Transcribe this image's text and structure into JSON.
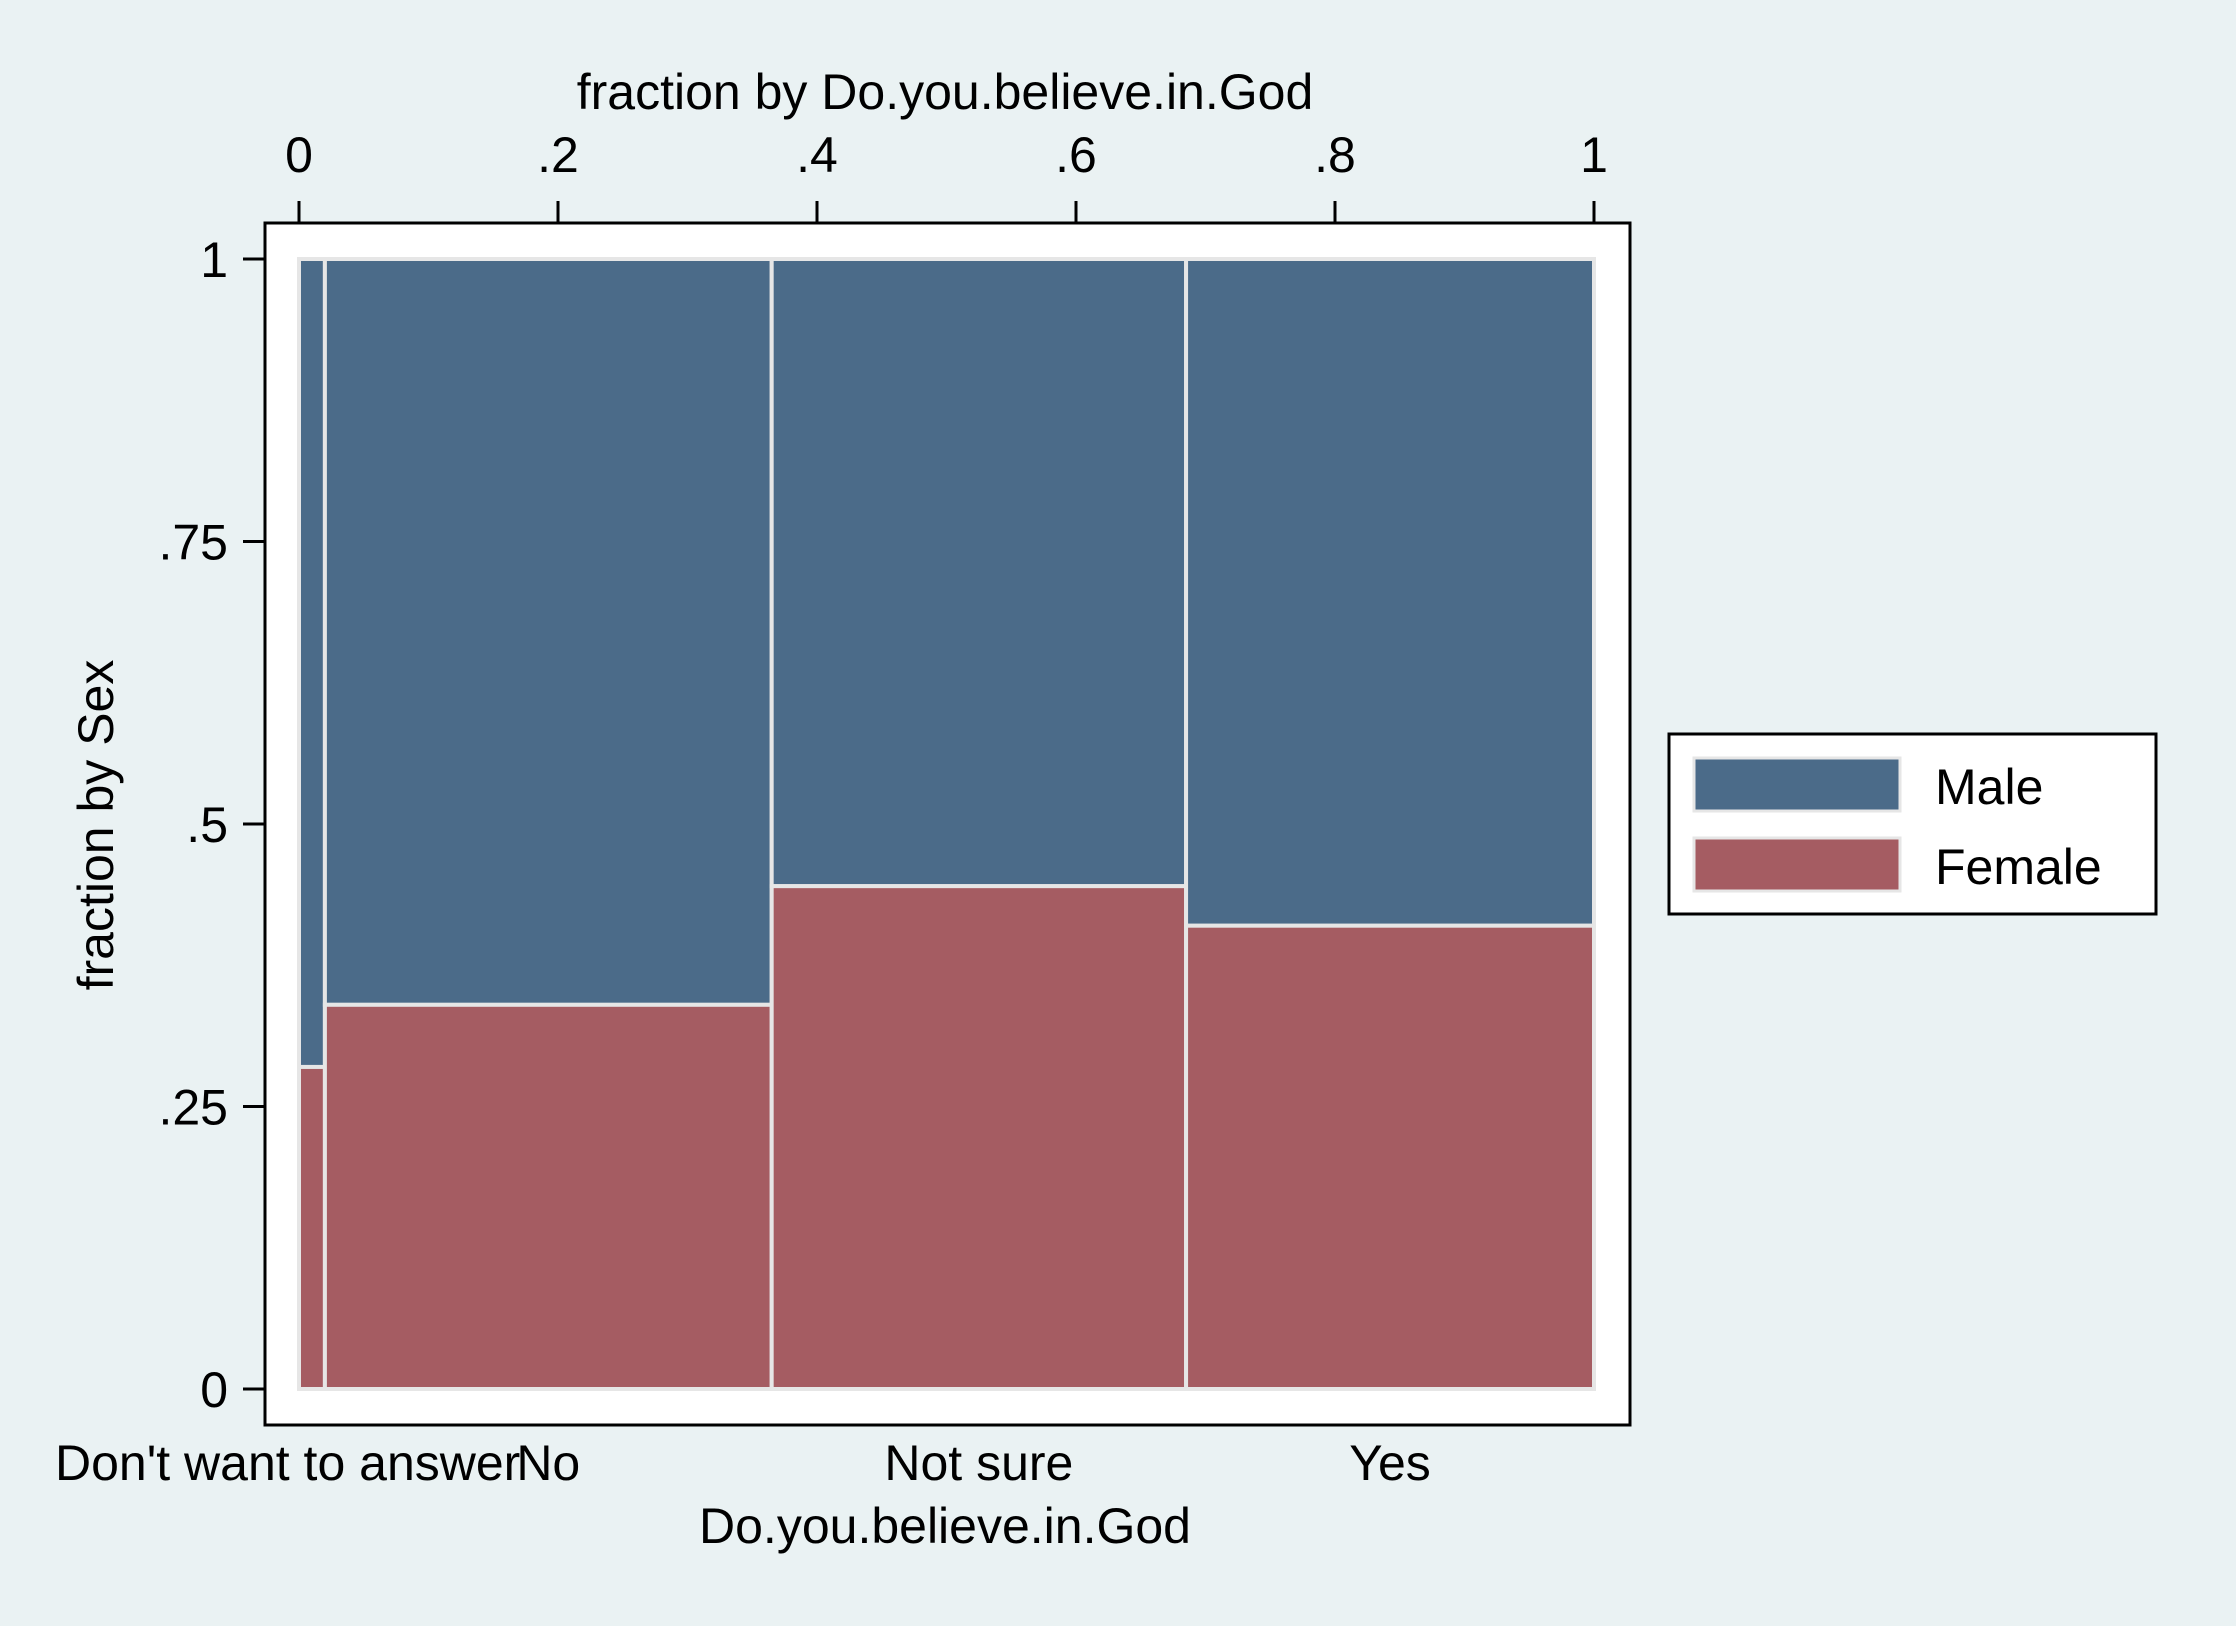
{
  "chart_data": {
    "type": "mosaic",
    "x_axis_top_title": "fraction by Do.you.believe.in.God",
    "x_axis_bottom_title": "Do.you.believe.in.God",
    "y_axis_title": "fraction by Sex",
    "top_ticks": [
      {
        "value": 0,
        "label": "0"
      },
      {
        "value": 0.2,
        "label": ".2"
      },
      {
        "value": 0.4,
        "label": ".4"
      },
      {
        "value": 0.6,
        "label": ".6"
      },
      {
        "value": 0.8,
        "label": ".8"
      },
      {
        "value": 1,
        "label": "1"
      }
    ],
    "y_ticks": [
      {
        "value": 0,
        "label": "0"
      },
      {
        "value": 0.25,
        "label": ".25"
      },
      {
        "value": 0.5,
        "label": ".5"
      },
      {
        "value": 0.75,
        "label": ".75"
      },
      {
        "value": 1,
        "label": "1"
      }
    ],
    "categories": [
      "Don't want to answer",
      "No",
      "Not sure",
      "Yes"
    ],
    "category_widths": [
      0.02,
      0.345,
      0.32,
      0.315
    ],
    "series": [
      {
        "name": "Male",
        "color": "#4b6b89",
        "values": [
          0.715,
          0.66,
          0.555,
          0.59
        ]
      },
      {
        "name": "Female",
        "color": "#a55c62",
        "values": [
          0.285,
          0.34,
          0.445,
          0.41
        ]
      }
    ],
    "legend_position": "right",
    "colors": {
      "background": "#eaf2f3",
      "plot_background": "#ffffff"
    }
  }
}
